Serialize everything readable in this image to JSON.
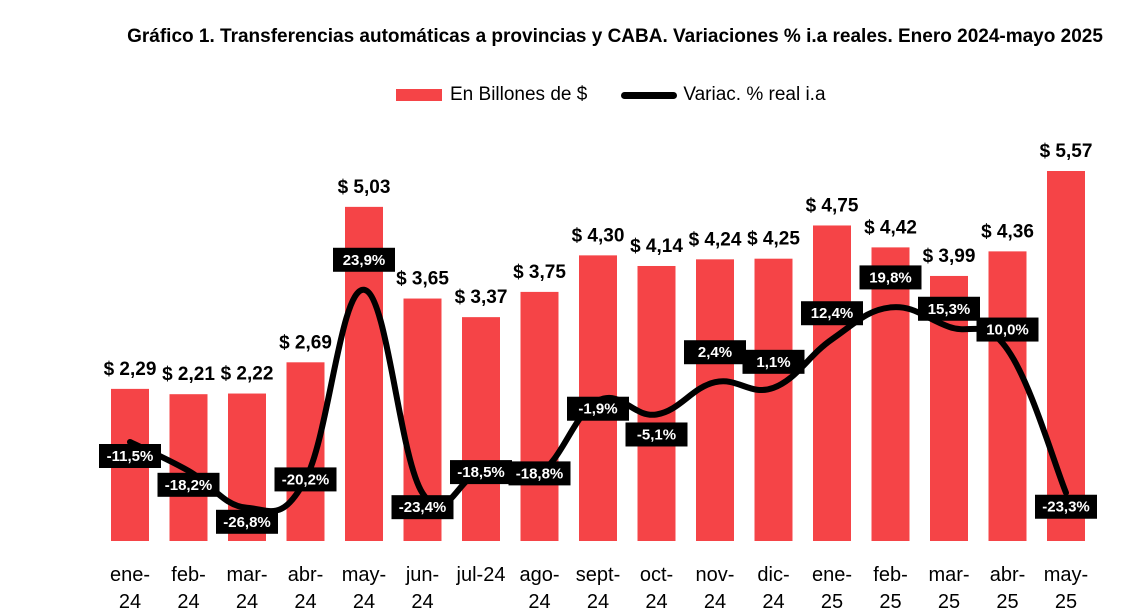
{
  "chart_data": {
    "type": "bar",
    "title": "Gráfico 1. Transferencias automáticas a provincias y CABA. Variaciones % i.a reales. Enero 2024-mayo 2025",
    "categories": [
      [
        "ene-",
        "24"
      ],
      [
        "feb-",
        "24"
      ],
      [
        "mar-",
        "24"
      ],
      [
        "abr-",
        "24"
      ],
      [
        "may-",
        "24"
      ],
      [
        "jun-",
        "24"
      ],
      [
        "jul-24",
        ""
      ],
      [
        "ago-",
        "24"
      ],
      [
        "sept-",
        "24"
      ],
      [
        "oct-",
        "24"
      ],
      [
        "nov-",
        "24"
      ],
      [
        "dic-",
        "24"
      ],
      [
        "ene-",
        "25"
      ],
      [
        "feb-",
        "25"
      ],
      [
        "mar-",
        "25"
      ],
      [
        "abr-",
        "25"
      ],
      [
        "may-",
        "25"
      ]
    ],
    "legend": [
      "En Billones de $",
      "Variac. % real i.a"
    ],
    "legend_position": "top",
    "grid": false,
    "series": [
      {
        "name": "En Billones de $",
        "type": "bar",
        "color": "#f54447",
        "values": [
          2.29,
          2.21,
          2.22,
          2.69,
          5.03,
          3.65,
          3.37,
          3.75,
          4.3,
          4.14,
          4.24,
          4.25,
          4.75,
          4.42,
          3.99,
          4.36,
          5.57
        ],
        "labels": [
          "$ 2,29",
          "$ 2,21",
          "$ 2,22",
          "$ 2,69",
          "$ 5,03",
          "$ 3,65",
          "$ 3,37",
          "$ 3,75",
          "$ 4,30",
          "$ 4,14",
          "$ 4,24",
          "$ 4,25",
          "$ 4,75",
          "$ 4,42",
          "$ 3,99",
          "$ 4,36",
          "$ 5,57"
        ]
      },
      {
        "name": "Variac. % real i.a",
        "type": "line",
        "color": "#000000",
        "values": [
          -11.5,
          -18.2,
          -26.8,
          -20.2,
          23.9,
          -23.4,
          -18.5,
          -18.8,
          -1.9,
          -5.1,
          2.4,
          1.1,
          12.4,
          19.8,
          15.3,
          10.0,
          -23.3
        ],
        "labels": [
          "-11,5%",
          "-18,2%",
          "-26,8%",
          "-20,2%",
          "23,9%",
          "-23,4%",
          "-18,5%",
          "-18,8%",
          "-1,9%",
          "-5,1%",
          "2,4%",
          "1,1%",
          "12,4%",
          "19,8%",
          "15,3%",
          "10,0%",
          "-23,3%"
        ]
      }
    ]
  }
}
